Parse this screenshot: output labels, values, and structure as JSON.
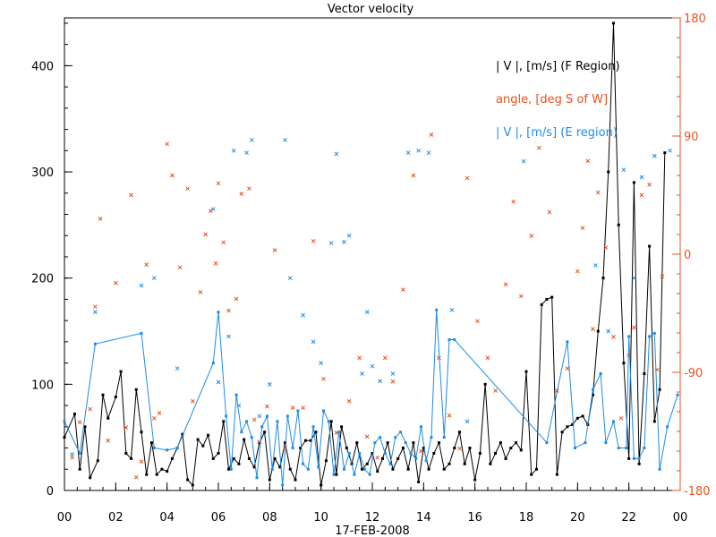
{
  "chart_data": {
    "type": "line",
    "title": "Vector velocity",
    "xlabel": "17-FEB-2008",
    "x_ticks": [
      "00",
      "02",
      "04",
      "06",
      "08",
      "10",
      "12",
      "14",
      "16",
      "18",
      "20",
      "22",
      "00"
    ],
    "xlim": [
      0,
      24
    ],
    "ylim": [
      0,
      445
    ],
    "y_ticks": [
      "0",
      "100",
      "200",
      "300",
      "400"
    ],
    "y2lim": [
      -180,
      180
    ],
    "y2_ticks": [
      "-180",
      "-90",
      "0",
      "90",
      "180"
    ],
    "grid": false,
    "legend_position": "top-right",
    "series": [
      {
        "name": "| V |, [m/s] (F Region)",
        "axis": "left",
        "color": "#000000",
        "style": "line+points",
        "x": [
          0.0,
          0.4,
          0.6,
          0.8,
          1.0,
          1.3,
          1.5,
          1.7,
          2.0,
          2.2,
          2.4,
          2.6,
          2.8,
          3.0,
          3.2,
          3.4,
          3.6,
          3.8,
          4.0,
          4.2,
          4.4,
          4.6,
          4.8,
          5.0,
          5.2,
          5.4,
          5.6,
          5.8,
          6.0,
          6.2,
          6.4,
          6.6,
          6.8,
          7.0,
          7.2,
          7.4,
          7.6,
          7.8,
          8.0,
          8.2,
          8.4,
          8.6,
          8.8,
          9.0,
          9.2,
          9.4,
          9.6,
          9.8,
          10.0,
          10.2,
          10.4,
          10.6,
          10.8,
          11.0,
          11.2,
          11.4,
          11.6,
          11.8,
          12.0,
          12.2,
          12.4,
          12.6,
          12.8,
          13.0,
          13.2,
          13.4,
          13.6,
          13.8,
          14.0,
          14.2,
          14.4,
          14.6,
          14.8,
          15.0,
          15.2,
          15.4,
          15.6,
          15.8,
          16.0,
          16.2,
          16.4,
          16.6,
          16.8,
          17.0,
          17.2,
          17.4,
          17.6,
          17.8,
          18.0,
          18.2,
          18.4,
          18.6,
          18.8,
          19.0,
          19.2,
          19.4,
          19.6,
          19.8,
          20.0,
          20.2,
          20.4,
          20.6,
          20.8,
          21.0,
          21.2,
          21.4,
          21.6,
          21.8,
          22.0,
          22.2,
          22.4,
          22.6,
          22.8,
          23.0,
          23.2,
          23.4
        ],
        "values": [
          50,
          72,
          20,
          60,
          12,
          28,
          90,
          68,
          88,
          112,
          35,
          30,
          95,
          55,
          15,
          45,
          15,
          20,
          18,
          30,
          40,
          53,
          10,
          5,
          48,
          42,
          52,
          30,
          35,
          65,
          20,
          30,
          25,
          48,
          30,
          22,
          45,
          55,
          10,
          30,
          22,
          45,
          20,
          10,
          40,
          47,
          47,
          55,
          5,
          28,
          65,
          15,
          60,
          40,
          25,
          45,
          20,
          25,
          35,
          18,
          30,
          45,
          20,
          30,
          40,
          20,
          45,
          8,
          40,
          20,
          35,
          45,
          20,
          25,
          40,
          55,
          25,
          40,
          10,
          35,
          100,
          25,
          35,
          45,
          30,
          40,
          45,
          38,
          112,
          15,
          20,
          175,
          180,
          182,
          15,
          55,
          60,
          62,
          68,
          70,
          62,
          90,
          150,
          200,
          300,
          440,
          250,
          120,
          30,
          290,
          25,
          110,
          230,
          65,
          95,
          318
        ]
      },
      {
        "name": "angle, [deg S of W]",
        "axis": "right",
        "color": "#e8501e",
        "style": "points",
        "x": [
          0.3,
          0.6,
          1.0,
          1.2,
          1.4,
          1.7,
          2.0,
          2.4,
          2.6,
          2.8,
          3.0,
          3.2,
          3.5,
          3.7,
          4.0,
          4.2,
          4.5,
          4.8,
          5.0,
          5.3,
          5.5,
          5.7,
          5.9,
          6.0,
          6.2,
          6.4,
          6.7,
          6.9,
          7.2,
          7.4,
          7.6,
          7.9,
          8.2,
          8.6,
          8.9,
          9.3,
          9.7,
          10.1,
          10.6,
          11.1,
          11.5,
          11.8,
          12.2,
          12.5,
          12.8,
          13.2,
          13.6,
          13.9,
          14.3,
          14.6,
          15.0,
          15.4,
          15.7,
          16.1,
          16.5,
          16.8,
          17.2,
          17.5,
          17.8,
          18.2,
          18.5,
          18.9,
          19.2,
          19.6,
          20.0,
          20.2,
          20.4,
          20.6,
          20.8,
          21.1,
          21.4,
          21.7,
          22.0,
          22.2,
          22.5,
          22.8,
          23.1,
          23.3
        ],
        "values": [
          -155,
          -128,
          -118,
          -40,
          27,
          -142,
          -22,
          -132,
          45,
          -170,
          -158,
          -8,
          -125,
          -121,
          84,
          60,
          -10,
          50,
          -112,
          -29,
          15,
          33,
          -7,
          54,
          9,
          -43,
          -34,
          46,
          50,
          -126,
          -143,
          -116,
          3,
          -147,
          -117,
          -117,
          10,
          -95,
          -136,
          -112,
          -79,
          -139,
          -155,
          -79,
          -97,
          -27,
          60,
          -150,
          91,
          -79,
          -123,
          -148,
          58,
          -51,
          -79,
          -104,
          -23,
          40,
          -32,
          14,
          81,
          32,
          -104,
          -87,
          -13,
          20,
          71,
          -57,
          47,
          5,
          -63,
          -125,
          -77,
          -56,
          45,
          53,
          -88,
          -17
        ]
      },
      {
        "name": "| V |, [m/s] (E region)",
        "axis": "left",
        "color": "#1e8ce6",
        "style": "line+points",
        "x": [
          0.0,
          0.6,
          1.2,
          3.0,
          3.5,
          4.0,
          4.4,
          5.8,
          6.0,
          6.3,
          6.5,
          6.7,
          6.9,
          7.1,
          7.3,
          7.5,
          7.7,
          7.9,
          8.1,
          8.3,
          8.5,
          8.7,
          8.9,
          9.1,
          9.3,
          9.5,
          9.7,
          9.9,
          10.1,
          10.3,
          10.5,
          10.7,
          10.9,
          11.1,
          11.3,
          11.5,
          11.7,
          11.9,
          12.1,
          12.3,
          12.5,
          12.7,
          12.9,
          13.1,
          13.3,
          13.5,
          13.7,
          13.9,
          14.1,
          14.3,
          14.5,
          14.8,
          15.0,
          15.2,
          18.8,
          19.6,
          19.9,
          20.3,
          20.6,
          20.9,
          21.1,
          21.4,
          21.6,
          21.9,
          22.0,
          22.2,
          22.4,
          22.6,
          22.8,
          23.0,
          23.2,
          23.5,
          23.9
        ],
        "values": [
          65,
          35,
          138,
          148,
          40,
          38,
          40,
          120,
          168,
          70,
          20,
          90,
          55,
          65,
          50,
          12,
          60,
          70,
          20,
          65,
          5,
          70,
          40,
          75,
          25,
          20,
          60,
          22,
          75,
          65,
          15,
          55,
          20,
          35,
          15,
          35,
          20,
          15,
          45,
          50,
          35,
          25,
          50,
          55,
          45,
          35,
          30,
          60,
          28,
          50,
          170,
          50,
          142,
          142,
          45,
          140,
          40,
          45,
          95,
          110,
          45,
          65,
          40,
          40,
          145,
          30,
          30,
          40,
          145,
          148,
          20,
          60,
          90
        ]
      },
      {
        "name": "| V |, [m/s] (E region) isolated points",
        "axis": "left",
        "color": "#1e8ce6",
        "style": "points",
        "x": [
          0.3,
          1.2,
          3.0,
          3.5,
          4.4,
          5.8,
          6.0,
          6.4,
          6.6,
          6.8,
          7.1,
          7.3,
          7.6,
          8.0,
          8.6,
          8.8,
          9.3,
          9.7,
          10.0,
          10.4,
          10.6,
          10.9,
          11.1,
          11.6,
          11.8,
          12.0,
          12.3,
          12.8,
          13.4,
          13.8,
          14.2,
          15.1,
          15.7,
          17.9,
          20.7,
          21.2,
          21.8,
          22.2,
          22.5,
          23.0,
          23.6
        ],
        "values": [
          34,
          168,
          193,
          200,
          115,
          265,
          102,
          145,
          320,
          80,
          318,
          330,
          70,
          100,
          330,
          200,
          165,
          140,
          120,
          233,
          317,
          234,
          240,
          110,
          168,
          117,
          103,
          110,
          318,
          320,
          318,
          170,
          65,
          310,
          212,
          150,
          302,
          200,
          295,
          315,
          320
        ]
      }
    ]
  }
}
